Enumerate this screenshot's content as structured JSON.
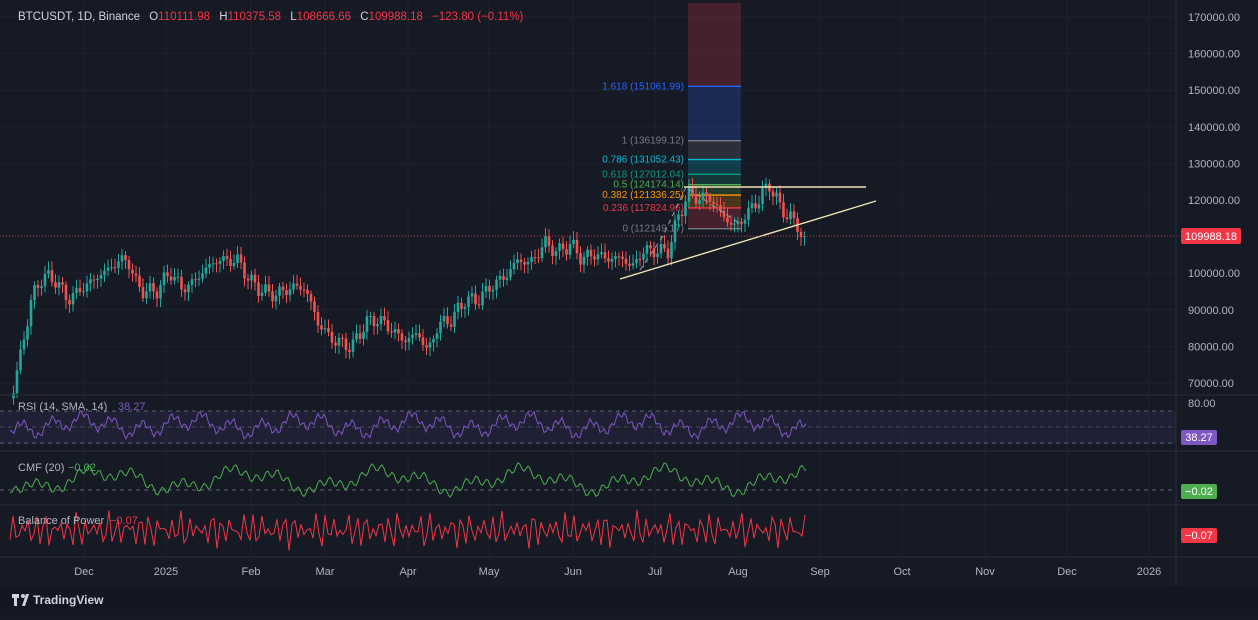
{
  "header": {
    "symbol": "BTCUSDT, 1D, Binance",
    "open_label": "O",
    "open": "110111.98",
    "high_label": "H",
    "high": "110375.58",
    "low_label": "L",
    "low": "108666.66",
    "close_label": "C",
    "close": "109988.18",
    "change": "−123.80 (−0.11%)"
  },
  "colors": {
    "background": "#161a25",
    "up": "#26a69a",
    "down": "#ef5350",
    "grid": "#1f2430",
    "text": "#b2b5be",
    "rsi": "#7e57c2",
    "cmf": "#4caf50",
    "bop": "#f23645",
    "price_tag": "#f23645"
  },
  "price_axis": {
    "ticks": [
      "170000.00",
      "160000.00",
      "150000.00",
      "140000.00",
      "130000.00",
      "120000.00",
      "110000.00",
      "100000.00",
      "90000.00",
      "80000.00",
      "70000.00"
    ],
    "current_price": "109988.18"
  },
  "time_axis": {
    "labels": [
      "Dec",
      "2025",
      "Feb",
      "Mar",
      "Apr",
      "May",
      "Jun",
      "Jul",
      "Aug",
      "Sep",
      "Oct",
      "Nov",
      "Dec",
      "2026"
    ]
  },
  "fib": {
    "levels": [
      {
        "label": "1.618 (151061.99)",
        "value": 151061.99,
        "color": "#2962ff"
      },
      {
        "label": "1 (136199.12)",
        "value": 136199.12,
        "color": "#787b86"
      },
      {
        "label": "0.786 (131052.43)",
        "value": 131052.43,
        "color": "#00bcd4"
      },
      {
        "label": "0.618 (127012.04)",
        "value": 127012.04,
        "color": "#089981"
      },
      {
        "label": "0.5 (124174.14)",
        "value": 124174.14,
        "color": "#4caf50"
      },
      {
        "label": "0.382 (121336.25)",
        "value": 121336.25,
        "color": "#ff9800"
      },
      {
        "label": "0.236 (117824.96)",
        "value": 117824.96,
        "color": "#f23645"
      },
      {
        "label": "0 (112149.17)",
        "value": 112149.17,
        "color": "#787b86"
      }
    ]
  },
  "rsi": {
    "label": "RSI (14, SMA, 14)",
    "value": "38.27",
    "upper_label": "80.00"
  },
  "cmf": {
    "label": "CMF (20)",
    "value": "−0.02"
  },
  "bop": {
    "label": "Balance of Power",
    "value": "−0.07"
  },
  "footer": {
    "brand": "TradingView"
  },
  "icons": {
    "logo": "tradingview-logo-icon"
  }
}
